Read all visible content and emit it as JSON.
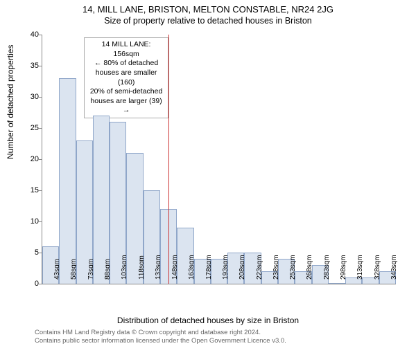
{
  "header": {
    "title": "14, MILL LANE, BRISTON, MELTON CONSTABLE, NR24 2JG",
    "subtitle": "Size of property relative to detached houses in Briston"
  },
  "chart": {
    "type": "histogram",
    "ylabel": "Number of detached properties",
    "xlabel": "Distribution of detached houses by size in Briston",
    "ylim": [
      0,
      40
    ],
    "ytick_step": 5,
    "yticks": [
      0,
      5,
      10,
      15,
      20,
      25,
      30,
      35,
      40
    ],
    "bar_fill": "#dbe4f0",
    "bar_stroke": "#8fa6c9",
    "background_color": "#ffffff",
    "axis_color": "#888888",
    "bins": [
      {
        "label": "43sqm",
        "value": 6
      },
      {
        "label": "58sqm",
        "value": 33
      },
      {
        "label": "73sqm",
        "value": 23
      },
      {
        "label": "88sqm",
        "value": 27
      },
      {
        "label": "103sqm",
        "value": 26
      },
      {
        "label": "118sqm",
        "value": 21
      },
      {
        "label": "133sqm",
        "value": 15
      },
      {
        "label": "148sqm",
        "value": 12
      },
      {
        "label": "163sqm",
        "value": 9
      },
      {
        "label": "178sqm",
        "value": 4
      },
      {
        "label": "193sqm",
        "value": 4
      },
      {
        "label": "208sqm",
        "value": 5
      },
      {
        "label": "223sqm",
        "value": 5
      },
      {
        "label": "238sqm",
        "value": 2
      },
      {
        "label": "253sqm",
        "value": 4
      },
      {
        "label": "268sqm",
        "value": 2
      },
      {
        "label": "283sqm",
        "value": 3
      },
      {
        "label": "298sqm",
        "value": 0
      },
      {
        "label": "313sqm",
        "value": 1
      },
      {
        "label": "328sqm",
        "value": 1
      },
      {
        "label": "343sqm",
        "value": 2
      }
    ],
    "marker": {
      "bin_index": 7.5,
      "color": "#cc3333",
      "callout": {
        "line1": "14 MILL LANE: 156sqm",
        "line2": "← 80% of detached houses are smaller (160)",
        "line3": "20% of semi-detached houses are larger (39) →"
      }
    }
  },
  "footer": {
    "line1": "Contains HM Land Registry data © Crown copyright and database right 2024.",
    "line2": "Contains public sector information licensed under the Open Government Licence v3.0."
  }
}
